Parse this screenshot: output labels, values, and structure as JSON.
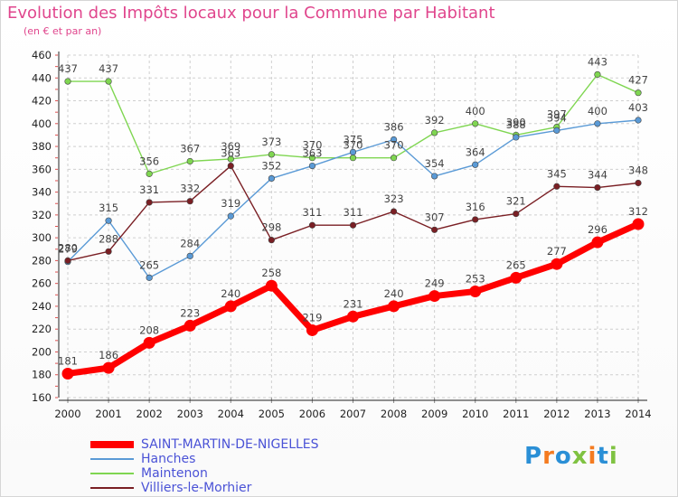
{
  "chart_data": {
    "type": "line",
    "title": "Evolution des Impôts locaux pour la Commune par Habitant",
    "subtitle": "(en € et par an)",
    "x": [
      "2000",
      "2001",
      "2002",
      "2003",
      "2004",
      "2005",
      "2006",
      "2007",
      "2008",
      "2009",
      "2010",
      "2011",
      "2012",
      "2013",
      "2014"
    ],
    "ylim": [
      160,
      460
    ],
    "yticks": [
      160,
      180,
      200,
      220,
      240,
      260,
      280,
      300,
      320,
      340,
      360,
      380,
      400,
      420,
      440,
      460
    ],
    "grid": true,
    "legend_position": "bottom-left",
    "series": [
      {
        "name": "Maintenon",
        "color": "#7fd651",
        "values": [
          437,
          437,
          356,
          367,
          369,
          373,
          370,
          370,
          370,
          392,
          400,
          390,
          397,
          443,
          427
        ]
      },
      {
        "name": "Hanches",
        "color": "#5a9ad6",
        "values": [
          279,
          315,
          265,
          284,
          319,
          352,
          363,
          375,
          386,
          354,
          364,
          388,
          394,
          400,
          403
        ]
      },
      {
        "name": "Villiers-le-Morhier",
        "color": "#7a1f24",
        "values": [
          280,
          288,
          331,
          332,
          363,
          298,
          311,
          311,
          323,
          307,
          316,
          321,
          345,
          344,
          348
        ]
      },
      {
        "name": "SAINT-MARTIN-DE-NIGELLES",
        "color": "#ff0000",
        "values": [
          181,
          186,
          208,
          223,
          240,
          258,
          219,
          231,
          240,
          249,
          253,
          265,
          277,
          296,
          312
        ]
      }
    ],
    "legend_order": [
      "SAINT-MARTIN-DE-NIGELLES",
      "Hanches",
      "Maintenon",
      "Villiers-le-Morhier"
    ]
  },
  "logo": {
    "text": "Proxiti",
    "letters": [
      "P",
      "r",
      "o",
      "x",
      "i",
      "t",
      "i"
    ],
    "colors": [
      "#2a8fd6",
      "#f47b20",
      "#2a8fd6",
      "#7fc241",
      "#f47b20",
      "#2a8fd6",
      "#7fc241"
    ]
  }
}
